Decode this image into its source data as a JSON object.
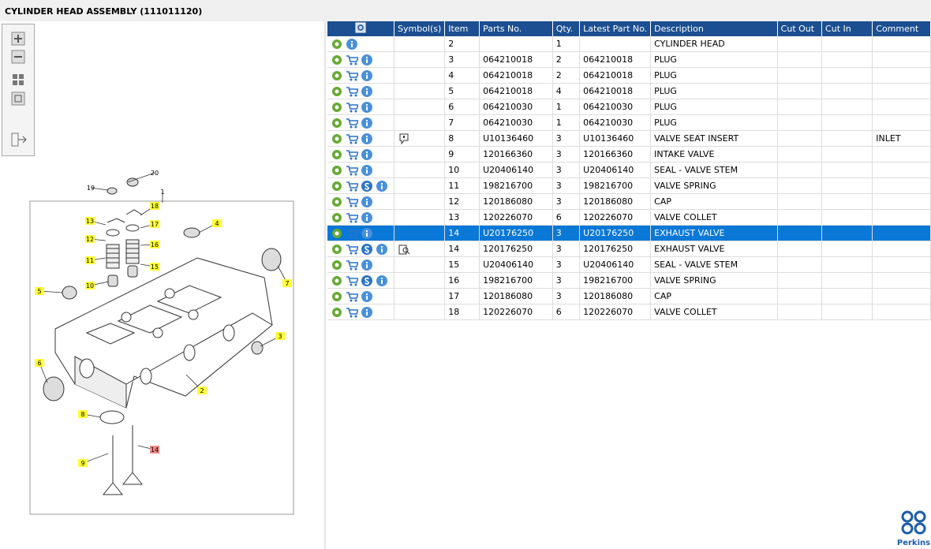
{
  "header": {
    "title": "CYLINDER HEAD ASSEMBLY (111011120)"
  },
  "diagram": {
    "callouts": [
      19,
      20,
      1,
      18,
      13,
      17,
      12,
      16,
      11,
      15,
      10,
      4,
      5,
      7,
      3,
      6,
      2,
      8,
      9,
      14
    ]
  },
  "table": {
    "headers": [
      "Symbol(s)",
      "Item",
      "Parts No.",
      "Qty.",
      "Latest Part No.",
      "Description",
      "Cut Out",
      "Cut In",
      "Comment"
    ],
    "rows": [
      {
        "item": 2,
        "qty": 1,
        "description": "CYLINDER HEAD"
      },
      {
        "item": 3,
        "parts_no": "064210018",
        "qty": 2,
        "latest_part_no": "064210018",
        "description": "PLUG"
      },
      {
        "item": 4,
        "parts_no": "064210018",
        "qty": 2,
        "latest_part_no": "064210018",
        "description": "PLUG"
      },
      {
        "item": 5,
        "parts_no": "064210018",
        "qty": 4,
        "latest_part_no": "064210018",
        "description": "PLUG"
      },
      {
        "item": 6,
        "parts_no": "064210030",
        "qty": 1,
        "latest_part_no": "064210030",
        "description": "PLUG"
      },
      {
        "item": 7,
        "parts_no": "064210030",
        "qty": 1,
        "latest_part_no": "064210030",
        "description": "PLUG"
      },
      {
        "item": 8,
        "parts_no": "U10136460",
        "qty": 3,
        "latest_part_no": "U10136460",
        "description": "VALVE SEAT INSERT",
        "comment": "INLET"
      },
      {
        "item": 9,
        "parts_no": "120166360",
        "qty": 3,
        "latest_part_no": "120166360",
        "description": "INTAKE VALVE"
      },
      {
        "item": 10,
        "parts_no": "U20406140",
        "qty": 3,
        "latest_part_no": "U20406140",
        "description": "SEAL - VALVE STEM"
      },
      {
        "item": 11,
        "parts_no": "198216700",
        "qty": 3,
        "latest_part_no": "198216700",
        "description": "VALVE SPRING"
      },
      {
        "item": 12,
        "parts_no": "120186080",
        "qty": 3,
        "latest_part_no": "120186080",
        "description": "CAP"
      },
      {
        "item": 13,
        "parts_no": "120226070",
        "qty": 6,
        "latest_part_no": "120226070",
        "description": "VALVE COLLET"
      },
      {
        "item": 14,
        "parts_no": "U20176250",
        "qty": 3,
        "latest_part_no": "U20176250",
        "description": "EXHAUST VALVE"
      },
      {
        "item": 14,
        "parts_no": "120176250",
        "qty": 3,
        "latest_part_no": "120176250",
        "description": "EXHAUST VALVE"
      },
      {
        "item": 15,
        "parts_no": "U20406140",
        "qty": 3,
        "latest_part_no": "U20406140",
        "description": "SEAL - VALVE STEM"
      },
      {
        "item": 16,
        "parts_no": "198216700",
        "qty": 3,
        "latest_part_no": "198216700",
        "description": "VALVE SPRING"
      },
      {
        "item": 17,
        "parts_no": "120186080",
        "qty": 3,
        "latest_part_no": "120186080",
        "description": "CAP"
      },
      {
        "item": 18,
        "parts_no": "120226070",
        "qty": 6,
        "latest_part_no": "120226070",
        "description": "VALVE COLLET"
      }
    ]
  },
  "footer": {
    "logo": "Perkins"
  }
}
